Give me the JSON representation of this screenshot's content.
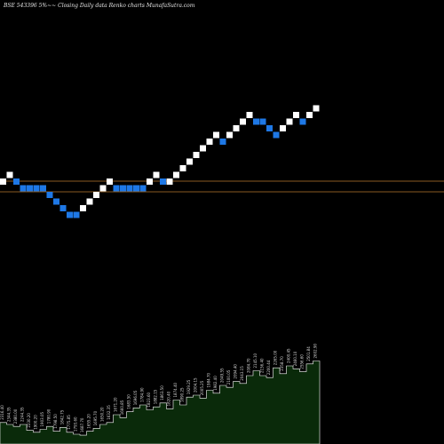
{
  "title": "BSE 543396  5%~~  Closing Daily data  Renko  charts MunafaSutra.com",
  "colors": {
    "background": "#000000",
    "brick_up": "#ffffff",
    "brick_down": "#1e78e6",
    "reference_line": "#8a5a22",
    "volume_fill": "#0a2a0a",
    "volume_line": "#ffffff",
    "volume_label": "#d8d8d8"
  },
  "chart_data": {
    "type": "renko",
    "brick_directions": [
      "up",
      "up",
      "down",
      "down",
      "down",
      "down",
      "down",
      "down",
      "down",
      "down",
      "down",
      "down",
      "up",
      "up",
      "up",
      "up",
      "up",
      "down",
      "down",
      "down",
      "down",
      "down",
      "up",
      "up",
      "down",
      "up",
      "up",
      "up",
      "up",
      "up",
      "up",
      "up",
      "up",
      "down",
      "up",
      "up",
      "up",
      "up",
      "down",
      "down",
      "down",
      "down",
      "up",
      "up",
      "up",
      "down",
      "up",
      "up"
    ],
    "brick_levels": [
      0,
      1,
      0,
      -1,
      -1,
      -1,
      -1,
      -2,
      -3,
      -4,
      -5,
      -5,
      -4,
      -3,
      -2,
      -1,
      0,
      -1,
      -1,
      -1,
      -1,
      -1,
      0,
      1,
      0,
      0,
      1,
      2,
      3,
      4,
      5,
      6,
      7,
      6,
      7,
      8,
      9,
      10,
      9,
      9,
      8,
      7,
      8,
      9,
      10,
      9,
      10,
      11
    ],
    "volume_labels": [
      "2316.40",
      "2344.35",
      "2380.00",
      "2244.35",
      "2230.20",
      "1900.20",
      "1903.05",
      "1780.90",
      "1798.50",
      "1842.75",
      "1775.85",
      "1793.60",
      "1687.70",
      "1655.20",
      "1695.70",
      "1650.20",
      "1632.35",
      "1671.20",
      "1660.85",
      "1683.50",
      "1696.05",
      "1784.90",
      "1823.60",
      "1882.15",
      "1863.50",
      "1820.40",
      "1874.40",
      "1890.25",
      "1929.25",
      "2004.15",
      "2005.25",
      "1984.70",
      "1982.40",
      "2049.55",
      "2100.05",
      "2094.40",
      "2043.15",
      "2084.70",
      "2145.10",
      "2156.40",
      "2200.44",
      "2265.00",
      "2358.70",
      "2400.45",
      "2460.10",
      "2556.60",
      "2501.84",
      "2602.90"
    ],
    "volume_heights": [
      0.22,
      0.2,
      0.18,
      0.2,
      0.14,
      0.12,
      0.15,
      0.18,
      0.13,
      0.17,
      0.12,
      0.1,
      0.09,
      0.13,
      0.16,
      0.2,
      0.22,
      0.3,
      0.27,
      0.33,
      0.37,
      0.4,
      0.35,
      0.38,
      0.42,
      0.36,
      0.45,
      0.4,
      0.48,
      0.5,
      0.47,
      0.55,
      0.52,
      0.6,
      0.58,
      0.64,
      0.62,
      0.7,
      0.75,
      0.7,
      0.68,
      0.78,
      0.72,
      0.8,
      0.77,
      0.74,
      0.82,
      0.85
    ],
    "reference_lines": [
      "upper",
      "lower"
    ]
  }
}
